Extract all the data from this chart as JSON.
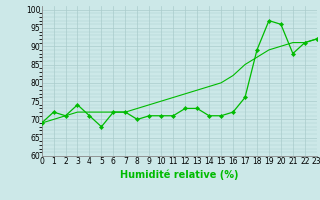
{
  "xlabel": "Humidité relative (%)",
  "bg_color": "#cce8e8",
  "grid_color": "#aacccc",
  "line_color": "#00bb00",
  "x_values": [
    0,
    1,
    2,
    3,
    4,
    5,
    6,
    7,
    8,
    9,
    10,
    11,
    12,
    13,
    14,
    15,
    16,
    17,
    18,
    19,
    20,
    21,
    22,
    23
  ],
  "y_measured": [
    69,
    72,
    71,
    74,
    71,
    68,
    72,
    72,
    70,
    71,
    71,
    71,
    73,
    73,
    71,
    71,
    72,
    76,
    89,
    97,
    96,
    88,
    91,
    92
  ],
  "y_trend": [
    69,
    70,
    71,
    72,
    72,
    72,
    72,
    72,
    73,
    74,
    75,
    76,
    77,
    78,
    79,
    80,
    82,
    85,
    87,
    89,
    90,
    91,
    91,
    92
  ],
  "ylim": [
    60,
    101
  ],
  "xlim": [
    0,
    23
  ],
  "yticks": [
    60,
    65,
    70,
    75,
    80,
    85,
    90,
    95,
    100
  ],
  "xticks": [
    0,
    1,
    2,
    3,
    4,
    5,
    6,
    7,
    8,
    9,
    10,
    11,
    12,
    13,
    14,
    15,
    16,
    17,
    18,
    19,
    20,
    21,
    22,
    23
  ],
  "xlabel_fontsize": 7,
  "tick_fontsize": 5.5
}
